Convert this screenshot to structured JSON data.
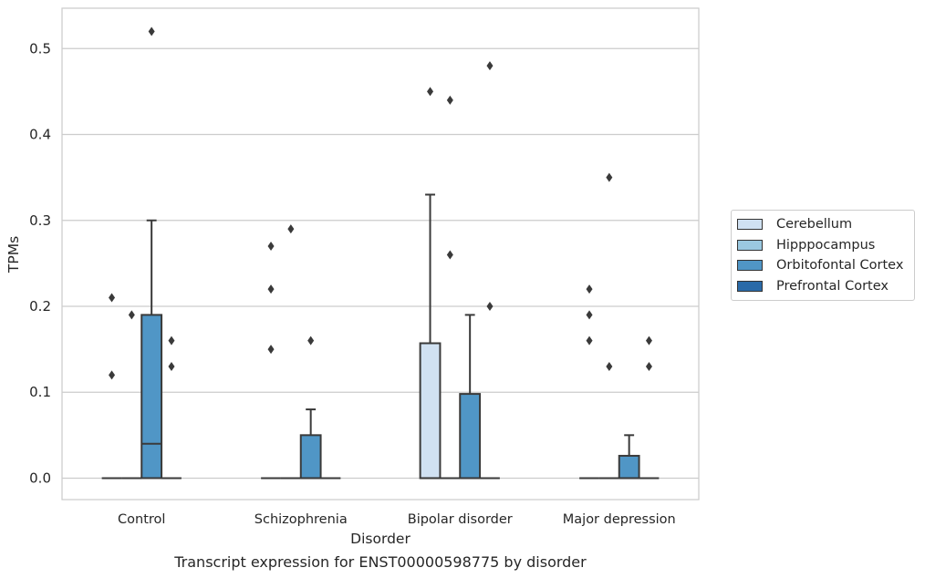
{
  "chart_data": {
    "type": "box",
    "xlabel": "Disorder",
    "ylabel": "TPMs",
    "caption": "Transcript expression for ENST00000598775 by disorder",
    "categories": [
      "Control",
      "Schizophrenia",
      "Bipolar disorder",
      "Major depression"
    ],
    "ylim": [
      -0.025,
      0.547
    ],
    "yticks": [
      0.0,
      0.1,
      0.2,
      0.3,
      0.4,
      0.5
    ],
    "ytick_labels": [
      "0.0",
      "0.1",
      "0.2",
      "0.3",
      "0.4",
      "0.5"
    ],
    "grid": "horizontal",
    "legend_position": "right",
    "series": [
      {
        "name": "Cerebellum",
        "color": "#d0e1f2",
        "boxes": [
          {
            "q1": 0,
            "median": 0,
            "q3": 0,
            "whisker_low": 0,
            "whisker_high": 0,
            "outliers": [
              0.12,
              0.21
            ]
          },
          {
            "q1": 0,
            "median": 0,
            "q3": 0,
            "whisker_low": 0,
            "whisker_high": 0,
            "outliers": [
              0.15,
              0.22,
              0.27
            ]
          },
          {
            "q1": 0,
            "median": 0,
            "q3": 0.157,
            "whisker_low": 0,
            "whisker_high": 0.33,
            "outliers": [
              0.45
            ]
          },
          {
            "q1": 0,
            "median": 0,
            "q3": 0,
            "whisker_low": 0,
            "whisker_high": 0,
            "outliers": [
              0.16,
              0.19,
              0.22
            ]
          }
        ]
      },
      {
        "name": "Hipppocampus",
        "color": "#9ac8e0",
        "boxes": [
          {
            "q1": 0,
            "median": 0,
            "q3": 0,
            "whisker_low": 0,
            "whisker_high": 0,
            "outliers": [
              0.19
            ]
          },
          {
            "q1": 0,
            "median": 0,
            "q3": 0,
            "whisker_low": 0,
            "whisker_high": 0,
            "outliers": [
              0.29
            ]
          },
          {
            "q1": 0,
            "median": 0,
            "q3": 0,
            "whisker_low": 0,
            "whisker_high": 0,
            "outliers": [
              0.44,
              0.26
            ]
          },
          {
            "q1": 0,
            "median": 0,
            "q3": 0,
            "whisker_low": 0,
            "whisker_high": 0,
            "outliers": [
              0.35,
              0.13
            ]
          }
        ]
      },
      {
        "name": "Orbitofontal Cortex",
        "color": "#5096c6",
        "boxes": [
          {
            "q1": 0,
            "median": 0.04,
            "q3": 0.19,
            "whisker_low": 0,
            "whisker_high": 0.3,
            "outliers": [
              0.52
            ]
          },
          {
            "q1": 0,
            "median": 0,
            "q3": 0.05,
            "whisker_low": 0,
            "whisker_high": 0.08,
            "outliers": [
              0.16
            ]
          },
          {
            "q1": 0,
            "median": 0,
            "q3": 0.098,
            "whisker_low": 0,
            "whisker_high": 0.19,
            "outliers": []
          },
          {
            "q1": 0,
            "median": 0,
            "q3": 0.026,
            "whisker_low": 0,
            "whisker_high": 0.05,
            "outliers": []
          }
        ]
      },
      {
        "name": "Prefrontal Cortex",
        "color": "#2a6aa8",
        "boxes": [
          {
            "q1": 0,
            "median": 0,
            "q3": 0,
            "whisker_low": 0,
            "whisker_high": 0,
            "outliers": [
              0.13,
              0.16
            ]
          },
          {
            "q1": 0,
            "median": 0,
            "q3": 0,
            "whisker_low": 0,
            "whisker_high": 0,
            "outliers": []
          },
          {
            "q1": 0,
            "median": 0,
            "q3": 0,
            "whisker_low": 0,
            "whisker_high": 0,
            "outliers": [
              0.2,
              0.48
            ]
          },
          {
            "q1": 0,
            "median": 0,
            "q3": 0,
            "whisker_low": 0,
            "whisker_high": 0,
            "outliers": [
              0.13,
              0.16
            ]
          }
        ]
      }
    ]
  }
}
